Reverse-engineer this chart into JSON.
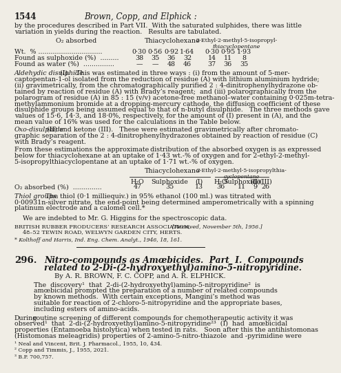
{
  "page_number": "1544",
  "header_title": "Brown, Copp, and Elphick :",
  "bg_color": "#f0ede5",
  "text_color": "#1a1a1a",
  "intro_text": "by the procedures described in Part VII.  With the saturated sulphides, there was little\nvariation in yields during the reaction.   Results are tabulated.",
  "table1_rows": [
    [
      "Wt.  % ...............................",
      "0·30",
      "0·56",
      "0·92",
      "1·64",
      "0·30",
      "0·95",
      "1·93"
    ],
    [
      "Found as sulphoxide (%)  .........",
      "38",
      "35",
      "36",
      "32",
      "14",
      "11",
      "8"
    ],
    [
      "Found as water (%)  ...............",
      "—",
      "—",
      "48",
      "46",
      "37",
      "36",
      "35"
    ]
  ],
  "para1_italic_start": "Aldehydic disulphide",
  "para1_italic_suffix": " (I).   This was estimated in three ways : (i) from the amount of 5-mer-",
  "para1_lines": [
    "captopentan-1-ol isolated from the reduction of residue (A) with lithium aluminium hydride;",
    "(ii) gravimetrically, from the chromatographically purified 2 : 4-dinitrophenylhydrazone ob-",
    "tained by reaction of residue (A) with Brady’s reagent;  and (iii) polarographically from the",
    "polarogram of residue (A) in 85 : 15 (v/v) acetone-free methanol–water containing 0·025m-tetra-",
    "methylammonium bromide at a dropping-mercury cathode, the diffusion coefficient of these",
    "disulphide groups being assumed equal to that of n-butyl disulphide.   The three methods gave",
    "values of 15·6, 14·3, and 18·0%, respectively, for the amount of (I) present in (A), and the",
    "mean value of 16% was used for the calculations in the Table below."
  ],
  "para2_italic_start": "Oxo-disulphide",
  "para2_italic_suffix": " (II) and ketone (III).   These were estimated gravimetrically after chromato-",
  "para2_lines": [
    "graphic separation of the 2 : 4-dinitrophenylhydrazones obtained by reaction of residue (C)",
    "with Brady’s reagent."
  ],
  "para3_lines": [
    "From these estimations the approximate distribution of the absorbed oxygen is as expressed",
    "below for thiacyclohexane at an uptake of 1·43 wt.-% of oxygen and for 2-ethyl-2-methyl-",
    "5-isopropylthiacyclopentane at an uptake of 1·71 wt.-% of oxygen."
  ],
  "table2_subheaders": [
    "H₂O",
    "Sulphoxide",
    "(I)",
    "H₂O",
    "Sulphoxide",
    "(II)",
    "(III)"
  ],
  "table2_row": [
    "O₂ absorbed (%)  ..............",
    "47",
    "35",
    "13",
    "36",
    "11",
    "9",
    "26"
  ],
  "thiol_italic": "Thiol groups.",
  "thiol_lines": [
    "  The thiol (0·1 milliequiv.) in 95% ethanol (100 ml.) was titrated with",
    "0·00931n-silver nitrate, the end-point being determined amperometrically with a spinning",
    "platinum electrode and a calomel cell.*"
  ],
  "acknowledgement": "We are indebted to Mr. G. Higgins for the spectroscopic data.",
  "address_line1": "British Rubber Producers’ Research Association,",
  "address_line2": "48–52 Tewin Road, Welwyn Garden City, Herts.",
  "received": "[Received, November 5th, 1956.]",
  "footnote_a": "* Kolthoff and Harris, Ind. Eng. Chem. Analyt., 1946, 18, 161.",
  "section_number": "296.",
  "section_title_line1": "Nitro-compounds as Amœbicides.  Part  I.  Compounds",
  "section_title_line2": "related to 2-Di-(2-hydroxyethyl)amino-5-nitropyridine.",
  "by_line": "By A. R. Bʀown, F. C. Copp, and A. R. Eʟphick.",
  "by_line_display": "By A. R. Brown, F. C. Copp, and A. R. Elphick.",
  "intro2_lines": [
    "The  discovery¹  that  2-di-(2-hydroxyethyl)amino-5-nitropyridine²  is",
    "amœbicidal prompted the preparation of a number of related compounds",
    "by known methods.  With certain exceptions, Mangini’s method was",
    "suitable for reaction of 2-chloro-5-nitropyridine and the appropriate bases,",
    "including esters of amino-acids."
  ],
  "during_prefix": "During",
  "during_lines": [
    " routine screening of different compounds for chemotherapeutic activity it was",
    "observed¹  that  2-di-(2-hydroxyethyl)amino-5-nitropyridine²³  (I)  had  amœbicidal",
    "properties (Entamoeba histolytica) when tested in rats.   Soon after this the antihistomonas",
    "(Histomonas meleagridis) properties of 2-amino-5-nitro-thiazole  and -pyrimidine were"
  ],
  "footnote1": "¹ Neal and Vincent, Brit. J. Pharmacol., 1955, 10, 434.",
  "footnote2": "² Copp and Timmis, J., 1955, 2021.",
  "footnote3": "³ B.P. 700,757."
}
